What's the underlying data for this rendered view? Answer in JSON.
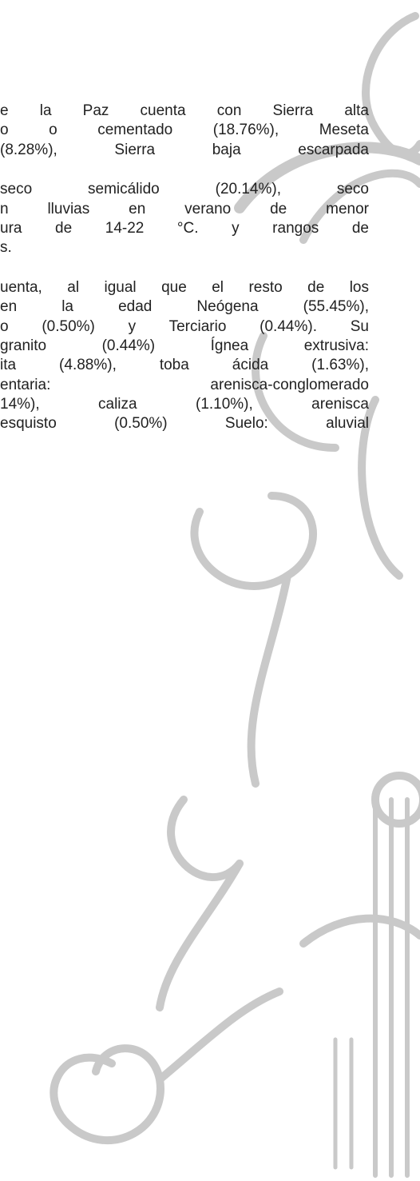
{
  "paragraphs": [
    {
      "lines": [
        "e la Paz cuenta con Sierra alta",
        "o o cementado (18.76%), Meseta",
        "(8.28%), Sierra baja escarpada"
      ]
    },
    {
      "lines": [
        "seco semicálido (20.14%), seco",
        "n lluvias en verano de menor",
        "ura de 14-22 °C. y rangos de",
        "s."
      ]
    },
    {
      "lines": [
        "uenta, al igual que el resto de los",
        "en la edad Neógena (55.45%),",
        "o (0.50%) y Terciario (0.44%). Su",
        "granito (0.44%) Ígnea extrusiva:",
        "ita (4.88%), toba ácida (1.63%),",
        "entaria: arenisca-conglomerado",
        "14%), caliza (1.10%), arenisca",
        "esquisto (0.50%) Suelo: aluvial"
      ]
    }
  ]
}
